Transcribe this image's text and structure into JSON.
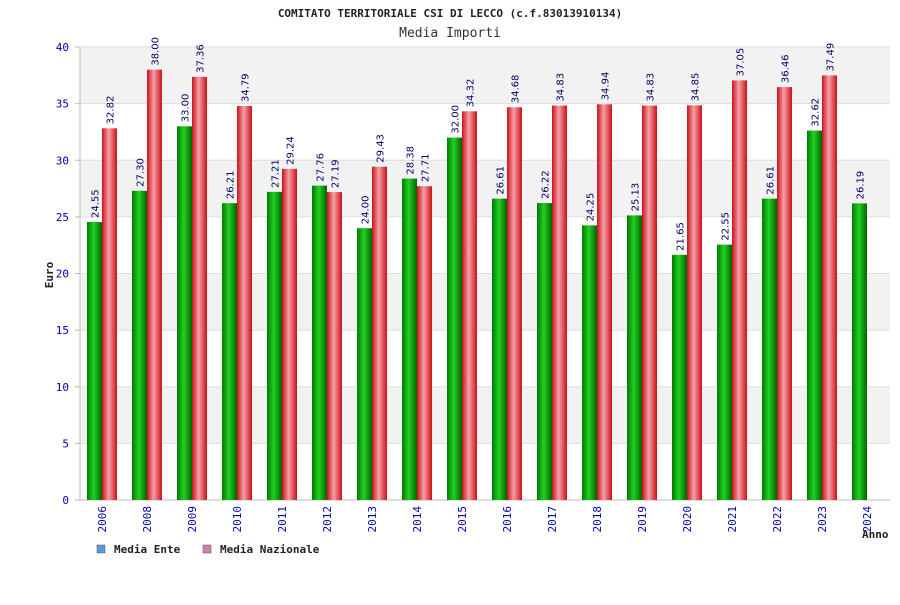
{
  "chart_data": {
    "type": "bar",
    "title": "COMITATO TERRITORIALE CSI DI LECCO (c.f.83013910134)",
    "subtitle": "Media Importi",
    "ylabel": "Euro",
    "xlabel": "Anno",
    "ylim": [
      0,
      40
    ],
    "yticks": [
      0,
      5,
      10,
      15,
      20,
      25,
      30,
      35,
      40
    ],
    "grid": true,
    "categories": [
      "2006",
      "2008",
      "2009",
      "2010",
      "2011",
      "2012",
      "2013",
      "2014",
      "2015",
      "2016",
      "2017",
      "2018",
      "2019",
      "2020",
      "2021",
      "2022",
      "2023",
      "2024"
    ],
    "series": [
      {
        "name": "Media Ente",
        "color": "#00a000",
        "legend_color": "#5b9bd5",
        "values": [
          24.55,
          27.3,
          33.0,
          26.21,
          27.21,
          27.76,
          24.0,
          28.38,
          32.0,
          26.61,
          26.22,
          24.25,
          25.13,
          21.65,
          22.55,
          26.61,
          32.62,
          26.19
        ],
        "labels": [
          "24.55",
          "27.30",
          "33.00",
          "26.21",
          "27.21",
          "27.76",
          "24.00",
          "28.38",
          "32.00",
          "26.61",
          "26.22",
          "24.25",
          "25.13",
          "21.65",
          "22.55",
          "26.61",
          "32.62",
          "26.19"
        ]
      },
      {
        "name": "Media Nazionale",
        "color": "#e8222a",
        "legend_color": "#d080b0",
        "values": [
          32.82,
          38.0,
          37.36,
          34.79,
          29.24,
          27.19,
          29.43,
          27.71,
          34.32,
          34.68,
          34.83,
          34.94,
          34.83,
          34.85,
          37.05,
          36.46,
          37.49,
          null
        ],
        "labels": [
          "32.82",
          "38.00",
          "37.36",
          "34.79",
          "29.24",
          "27.19",
          "29.43",
          "27.71",
          "34.32",
          "34.68",
          "34.83",
          "34.94",
          "34.83",
          "34.85",
          "37.05",
          "36.46",
          "37.49",
          null
        ]
      }
    ]
  }
}
